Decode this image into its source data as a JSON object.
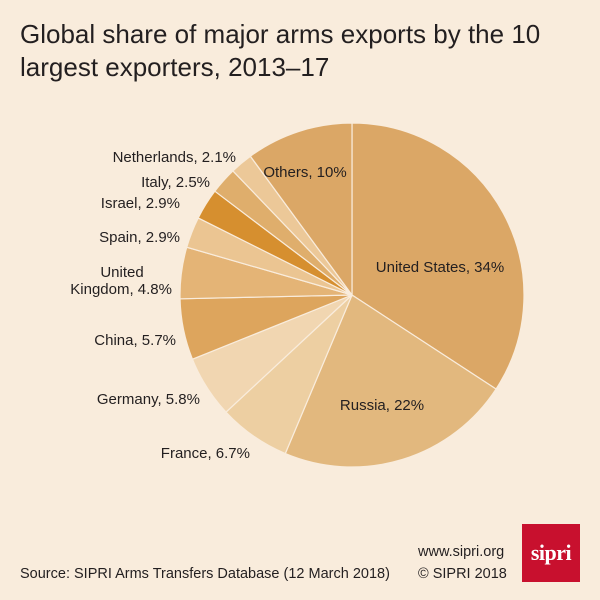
{
  "title": "Global share of major arms exports by the 10 largest exporters, 2013–17",
  "source": "Source: SIPRI Arms Transfers Database (12 March 2018)",
  "url": "www.sipri.org",
  "copyright": "© SIPRI 2018",
  "logo_text": "sipri",
  "colors": {
    "background": "#f9ecdc",
    "text": "#231f20",
    "logo": "#c8102e"
  },
  "chart_data": {
    "type": "pie",
    "title": "Global share of major arms exports by the 10 largest exporters, 2013–17",
    "unit": "%",
    "slices": [
      {
        "name": "United States",
        "value": 34,
        "label": "United States, 34%",
        "color": "#dba766"
      },
      {
        "name": "Russia",
        "value": 22,
        "label": "Russia, 22%",
        "color": "#e2b87e"
      },
      {
        "name": "France",
        "value": 6.7,
        "label": "France, 6.7%",
        "color": "#edcfa2"
      },
      {
        "name": "Germany",
        "value": 5.8,
        "label": "Germany, 5.8%",
        "color": "#f1d6b1"
      },
      {
        "name": "China",
        "value": 5.7,
        "label": "China, 5.7%",
        "color": "#dda55d"
      },
      {
        "name": "United Kingdom",
        "value": 4.8,
        "label": "United Kingdom, 4.8%",
        "color": "#e4b476"
      },
      {
        "name": "Spain",
        "value": 2.9,
        "label": "Spain, 2.9%",
        "color": "#ebc592"
      },
      {
        "name": "Israel",
        "value": 2.9,
        "label": "Israel, 2.9%",
        "color": "#d68f2f"
      },
      {
        "name": "Italy",
        "value": 2.5,
        "label": "Italy, 2.5%",
        "color": "#dfae6c"
      },
      {
        "name": "Netherlands",
        "value": 2.1,
        "label": "Netherlands, 2.1%",
        "color": "#ecc898"
      },
      {
        "name": "Others",
        "value": 10,
        "label": "Others, 10%",
        "color": "#dba766"
      }
    ]
  }
}
